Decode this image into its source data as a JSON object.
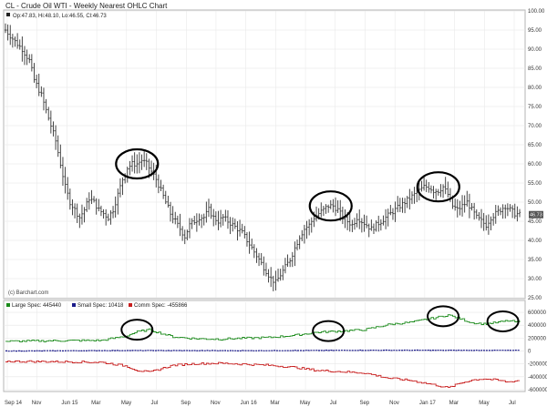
{
  "header": {
    "title": "CL - Crude Oil WTI - Weekly Nearest OHLC Chart",
    "ohlc_info": "Op:47.83, Hi:48.10, Lo:46.55, Cl:46.73",
    "watermark": "(c) Barchart.com",
    "last_price_badge": "46.73"
  },
  "colors": {
    "background": "#ffffff",
    "grid": "#e6e6e6",
    "price_bars": "#333333",
    "large_spec": "#1a8a1a",
    "small_spec": "#1a1a8a",
    "comm_spec": "#c81e1e",
    "circle": "#000000",
    "badge": "#555555"
  },
  "chart_data": [
    {
      "type": "ohlc",
      "title": "CL - Crude Oil WTI - Weekly Nearest OHLC Chart",
      "ylim": [
        25,
        100
      ],
      "y_ticks": [
        "100.00",
        "95.00",
        "90.00",
        "85.00",
        "80.00",
        "75.00",
        "70.00",
        "65.00",
        "60.00",
        "55.00",
        "50.00",
        "45.00",
        "40.00",
        "35.00",
        "30.00",
        "25.00"
      ],
      "x_tick_labels": [
        "Sep 14",
        "Nov",
        "Jun 15",
        "Mar",
        "May",
        "Jul",
        "Sep",
        "Nov",
        "Jun 16",
        "Mar",
        "May",
        "Jul",
        "Sep",
        "Nov",
        "Jan 17",
        "Mar",
        "May",
        "Jul"
      ],
      "grid": true,
      "close_path": [
        [
          0,
          95
        ],
        [
          4,
          92
        ],
        [
          7,
          90
        ],
        [
          10,
          87
        ],
        [
          12,
          82
        ],
        [
          15,
          78
        ],
        [
          17,
          74
        ],
        [
          19,
          70
        ],
        [
          21,
          66
        ],
        [
          23,
          60
        ],
        [
          25,
          54
        ],
        [
          27,
          50
        ],
        [
          29,
          48
        ],
        [
          31,
          46
        ],
        [
          33,
          48
        ],
        [
          35,
          51
        ],
        [
          37,
          50
        ],
        [
          39,
          48
        ],
        [
          41,
          47
        ],
        [
          43,
          46
        ],
        [
          45,
          48
        ],
        [
          47,
          52
        ],
        [
          49,
          56
        ],
        [
          51,
          59
        ],
        [
          53,
          60
        ],
        [
          55,
          60
        ],
        [
          57,
          61
        ],
        [
          59,
          60
        ],
        [
          61,
          58
        ],
        [
          63,
          56
        ],
        [
          65,
          53
        ],
        [
          67,
          50
        ],
        [
          69,
          47
        ],
        [
          71,
          45
        ],
        [
          73,
          43
        ],
        [
          75,
          41
        ],
        [
          77,
          44
        ],
        [
          79,
          45
        ],
        [
          81,
          46
        ],
        [
          83,
          46
        ],
        [
          85,
          48
        ],
        [
          87,
          46
        ],
        [
          89,
          45
        ],
        [
          91,
          46
        ],
        [
          93,
          45
        ],
        [
          95,
          44
        ],
        [
          97,
          43
        ],
        [
          99,
          42
        ],
        [
          101,
          40
        ],
        [
          103,
          38
        ],
        [
          105,
          36
        ],
        [
          107,
          34
        ],
        [
          109,
          32
        ],
        [
          111,
          30
        ],
        [
          113,
          29
        ],
        [
          115,
          31
        ],
        [
          117,
          33
        ],
        [
          119,
          35
        ],
        [
          121,
          38
        ],
        [
          123,
          41
        ],
        [
          125,
          43
        ],
        [
          127,
          44
        ],
        [
          129,
          46
        ],
        [
          131,
          47
        ],
        [
          133,
          48
        ],
        [
          135,
          49
        ],
        [
          137,
          49
        ],
        [
          139,
          48
        ],
        [
          141,
          46
        ],
        [
          143,
          45
        ],
        [
          145,
          44
        ],
        [
          147,
          46
        ],
        [
          149,
          45
        ],
        [
          151,
          44
        ],
        [
          153,
          43
        ],
        [
          155,
          44
        ],
        [
          157,
          45
        ],
        [
          159,
          46
        ],
        [
          161,
          47
        ],
        [
          163,
          48
        ],
        [
          165,
          49
        ],
        [
          167,
          50
        ],
        [
          169,
          51
        ],
        [
          171,
          52
        ],
        [
          173,
          53
        ],
        [
          175,
          54
        ],
        [
          177,
          54
        ],
        [
          179,
          53
        ],
        [
          181,
          53
        ],
        [
          183,
          54
        ],
        [
          185,
          52
        ],
        [
          187,
          49
        ],
        [
          189,
          48
        ],
        [
          191,
          49
        ],
        [
          193,
          50
        ],
        [
          195,
          48
        ],
        [
          197,
          46
        ],
        [
          199,
          45
        ],
        [
          201,
          44
        ],
        [
          203,
          46
        ],
        [
          205,
          47
        ],
        [
          207,
          48
        ],
        [
          209,
          49
        ],
        [
          211,
          48
        ],
        [
          213,
          47
        ],
        [
          215,
          46.73
        ]
      ],
      "highlight_circles": [
        {
          "x": 55,
          "y": 60
        },
        {
          "x": 136,
          "y": 49
        },
        {
          "x": 181,
          "y": 54
        }
      ]
    },
    {
      "type": "line",
      "title": "",
      "ylim": [
        -600000,
        700000
      ],
      "y_ticks": [
        "600000",
        "400000",
        "200000",
        "0",
        "-200000",
        "-400000",
        "-600000"
      ],
      "legend": [
        "Large Spec: 445440",
        "Small Spec: 10418",
        "Comm Spec: -455866"
      ],
      "series": [
        {
          "name": "Large Spec: 445440",
          "points": [
            [
              0,
              150000
            ],
            [
              20,
              160000
            ],
            [
              40,
              165000
            ],
            [
              50,
              230000
            ],
            [
              55,
              300000
            ],
            [
              60,
              330000
            ],
            [
              70,
              220000
            ],
            [
              80,
              190000
            ],
            [
              90,
              185000
            ],
            [
              100,
              200000
            ],
            [
              110,
              210000
            ],
            [
              120,
              240000
            ],
            [
              130,
              290000
            ],
            [
              140,
              310000
            ],
            [
              150,
              330000
            ],
            [
              160,
              410000
            ],
            [
              170,
              450000
            ],
            [
              180,
              520000
            ],
            [
              185,
              560000
            ],
            [
              190,
              500000
            ],
            [
              195,
              440000
            ],
            [
              200,
              420000
            ],
            [
              205,
              440000
            ],
            [
              210,
              470000
            ],
            [
              215,
              445440
            ]
          ]
        },
        {
          "name": "Small Spec: 10418",
          "points": [
            [
              0,
              0
            ],
            [
              50,
              8000
            ],
            [
              100,
              5000
            ],
            [
              150,
              12000
            ],
            [
              215,
              10418
            ]
          ]
        },
        {
          "name": "Comm Spec: -455866",
          "points": [
            [
              0,
              -160000
            ],
            [
              20,
              -165000
            ],
            [
              40,
              -175000
            ],
            [
              50,
              -230000
            ],
            [
              55,
              -300000
            ],
            [
              60,
              -330000
            ],
            [
              70,
              -220000
            ],
            [
              80,
              -195000
            ],
            [
              90,
              -190000
            ],
            [
              100,
              -205000
            ],
            [
              110,
              -220000
            ],
            [
              120,
              -250000
            ],
            [
              130,
              -300000
            ],
            [
              140,
              -320000
            ],
            [
              150,
              -340000
            ],
            [
              160,
              -420000
            ],
            [
              170,
              -460000
            ],
            [
              180,
              -530000
            ],
            [
              185,
              -570000
            ],
            [
              190,
              -500000
            ],
            [
              195,
              -450000
            ],
            [
              200,
              -430000
            ],
            [
              205,
              -450000
            ],
            [
              210,
              -480000
            ],
            [
              215,
              -455866
            ]
          ]
        }
      ],
      "highlight_circles": [
        {
          "x": 55,
          "y": 330000
        },
        {
          "x": 135,
          "y": 310000
        },
        {
          "x": 183,
          "y": 540000
        },
        {
          "x": 208,
          "y": 460000
        }
      ]
    }
  ]
}
